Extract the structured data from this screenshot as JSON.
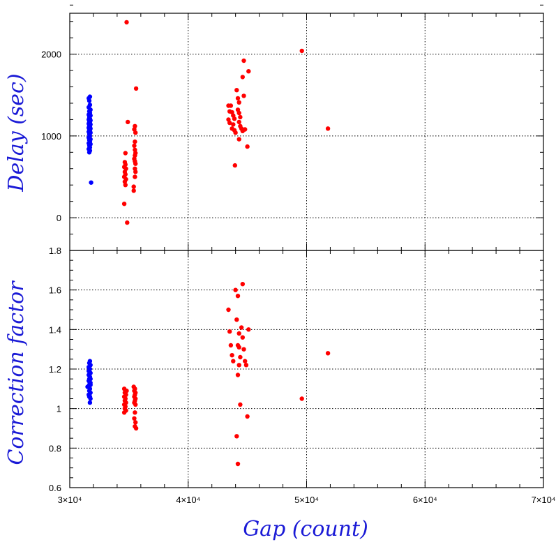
{
  "chart_data": [
    {
      "type": "scatter",
      "panel": "top",
      "ylabel": "Delay (sec)",
      "xlabel": "",
      "xlim": [
        30000,
        70000
      ],
      "ylim": [
        -400,
        2500
      ],
      "y_ticks": [
        "0",
        "1000",
        "2000"
      ],
      "grid": true,
      "series": [
        {
          "color": "#0000ff",
          "points": [
            [
              31600,
              1460
            ],
            [
              31700,
              1480
            ],
            [
              31650,
              1430
            ],
            [
              31700,
              1380
            ],
            [
              31600,
              1350
            ],
            [
              31750,
              1320
            ],
            [
              31650,
              1300
            ],
            [
              31700,
              1280
            ],
            [
              31600,
              1260
            ],
            [
              31750,
              1250
            ],
            [
              31650,
              1230
            ],
            [
              31700,
              1210
            ],
            [
              31600,
              1200
            ],
            [
              31750,
              1190
            ],
            [
              31650,
              1170
            ],
            [
              31700,
              1160
            ],
            [
              31600,
              1150
            ],
            [
              31750,
              1140
            ],
            [
              31650,
              1120
            ],
            [
              31700,
              1110
            ],
            [
              31600,
              1100
            ],
            [
              31750,
              1090
            ],
            [
              31650,
              1080
            ],
            [
              31700,
              1060
            ],
            [
              31600,
              1050
            ],
            [
              31750,
              1040
            ],
            [
              31650,
              1020
            ],
            [
              31700,
              1000
            ],
            [
              31600,
              980
            ],
            [
              31750,
              960
            ],
            [
              31650,
              950
            ],
            [
              31700,
              930
            ],
            [
              31600,
              910
            ],
            [
              31750,
              900
            ],
            [
              31650,
              880
            ],
            [
              31700,
              860
            ],
            [
              31600,
              840
            ],
            [
              31700,
              820
            ],
            [
              31650,
              800
            ],
            [
              31800,
              430
            ]
          ]
        },
        {
          "color": "#ff0000",
          "points": [
            [
              34600,
              170
            ],
            [
              34850,
              -60
            ],
            [
              34800,
              2390
            ],
            [
              34700,
              790
            ],
            [
              34650,
              680
            ],
            [
              34700,
              650
            ],
            [
              34600,
              620
            ],
            [
              34750,
              600
            ],
            [
              34650,
              560
            ],
            [
              34700,
              530
            ],
            [
              34600,
              500
            ],
            [
              34750,
              470
            ],
            [
              34650,
              440
            ],
            [
              34700,
              400
            ],
            [
              34900,
              1170
            ],
            [
              35400,
              330
            ],
            [
              35400,
              380
            ],
            [
              35500,
              500
            ],
            [
              35600,
              1580
            ],
            [
              35500,
              1120
            ],
            [
              35450,
              1080
            ],
            [
              35550,
              1040
            ],
            [
              35500,
              930
            ],
            [
              35450,
              880
            ],
            [
              35500,
              830
            ],
            [
              35550,
              790
            ],
            [
              35500,
              760
            ],
            [
              35450,
              720
            ],
            [
              35500,
              690
            ],
            [
              35550,
              660
            ],
            [
              35500,
              600
            ],
            [
              35550,
              560
            ],
            [
              43400,
              1370
            ],
            [
              43500,
              1300
            ],
            [
              43400,
              1200
            ],
            [
              43500,
              1160
            ],
            [
              43600,
              1370
            ],
            [
              43700,
              1290
            ],
            [
              43800,
              1250
            ],
            [
              43900,
              1210
            ],
            [
              43800,
              1140
            ],
            [
              43700,
              1090
            ],
            [
              43900,
              1070
            ],
            [
              44000,
              1040
            ],
            [
              44100,
              1560
            ],
            [
              44200,
              1460
            ],
            [
              44300,
              1410
            ],
            [
              44200,
              1320
            ],
            [
              44300,
              1280
            ],
            [
              44400,
              1230
            ],
            [
              44300,
              1170
            ],
            [
              44400,
              1120
            ],
            [
              44500,
              1090
            ],
            [
              44600,
              1060
            ],
            [
              44300,
              960
            ],
            [
              44700,
              1920
            ],
            [
              44600,
              1720
            ],
            [
              44700,
              1490
            ],
            [
              44800,
              1080
            ],
            [
              45100,
              1790
            ],
            [
              45000,
              870
            ],
            [
              43950,
              640
            ],
            [
              49600,
              2040
            ],
            [
              51800,
              1090
            ]
          ]
        }
      ]
    },
    {
      "type": "scatter",
      "panel": "bottom",
      "ylabel": "Correction factor",
      "xlabel": "Gap (count)",
      "xlim": [
        30000,
        70000
      ],
      "ylim": [
        0.6,
        1.8
      ],
      "y_ticks": [
        "0.6",
        "0.8",
        "1",
        "1.2",
        "1.4",
        "1.6",
        "1.8"
      ],
      "x_ticks": [
        "3×10⁴",
        "4×10⁴",
        "5×10⁴",
        "6×10⁴",
        "7×10⁴"
      ],
      "grid": true,
      "series": [
        {
          "color": "#0000ff",
          "points": [
            [
              31700,
              1.24
            ],
            [
              31650,
              1.23
            ],
            [
              31750,
              1.22
            ],
            [
              31600,
              1.21
            ],
            [
              31700,
              1.2
            ],
            [
              31650,
              1.19
            ],
            [
              31750,
              1.18
            ],
            [
              31600,
              1.17
            ],
            [
              31700,
              1.16
            ],
            [
              31650,
              1.15
            ],
            [
              31750,
              1.15
            ],
            [
              31600,
              1.14
            ],
            [
              31700,
              1.13
            ],
            [
              31650,
              1.12
            ],
            [
              31750,
              1.12
            ],
            [
              31500,
              1.11
            ],
            [
              31600,
              1.11
            ],
            [
              31700,
              1.1
            ],
            [
              31650,
              1.09
            ],
            [
              31750,
              1.08
            ],
            [
              31600,
              1.07
            ],
            [
              31700,
              1.06
            ],
            [
              31650,
              1.06
            ],
            [
              31750,
              1.05
            ],
            [
              31700,
              1.03
            ],
            [
              31650,
              1.17
            ],
            [
              31750,
              1.13
            ],
            [
              31600,
              1.19
            ]
          ]
        },
        {
          "color": "#ff0000",
          "points": [
            [
              34600,
              1.1
            ],
            [
              34700,
              1.09
            ],
            [
              34650,
              1.08
            ],
            [
              34750,
              1.07
            ],
            [
              34600,
              1.06
            ],
            [
              34700,
              1.05
            ],
            [
              34650,
              1.04
            ],
            [
              34750,
              1.03
            ],
            [
              34600,
              1.02
            ],
            [
              34700,
              1.01
            ],
            [
              34650,
              1.0
            ],
            [
              34750,
              0.99
            ],
            [
              34600,
              0.98
            ],
            [
              34800,
              1.09
            ],
            [
              35400,
              1.11
            ],
            [
              35500,
              1.1
            ],
            [
              35450,
              1.09
            ],
            [
              35550,
              1.08
            ],
            [
              35500,
              1.07
            ],
            [
              35450,
              1.06
            ],
            [
              35550,
              1.05
            ],
            [
              35500,
              1.04
            ],
            [
              35450,
              1.03
            ],
            [
              35550,
              1.02
            ],
            [
              35500,
              0.98
            ],
            [
              35450,
              0.95
            ],
            [
              35550,
              0.93
            ],
            [
              35500,
              0.91
            ],
            [
              35600,
              0.9
            ],
            [
              43400,
              1.5
            ],
            [
              43500,
              1.39
            ],
            [
              43600,
              1.32
            ],
            [
              43700,
              1.27
            ],
            [
              43800,
              1.24
            ],
            [
              44000,
              1.6
            ],
            [
              44100,
              1.45
            ],
            [
              44200,
              1.57
            ],
            [
              44300,
              1.38
            ],
            [
              44200,
              1.32
            ],
            [
              44300,
              1.31
            ],
            [
              44400,
              1.26
            ],
            [
              44300,
              1.22
            ],
            [
              44200,
              1.17
            ],
            [
              44600,
              1.63
            ],
            [
              44500,
              1.41
            ],
            [
              44600,
              1.36
            ],
            [
              44700,
              1.3
            ],
            [
              44800,
              1.24
            ],
            [
              44900,
              1.22
            ],
            [
              45100,
              1.4
            ],
            [
              44400,
              1.02
            ],
            [
              44100,
              0.86
            ],
            [
              44200,
              0.72
            ],
            [
              45000,
              0.96
            ],
            [
              49600,
              1.05
            ],
            [
              51800,
              1.28
            ]
          ]
        }
      ]
    }
  ]
}
